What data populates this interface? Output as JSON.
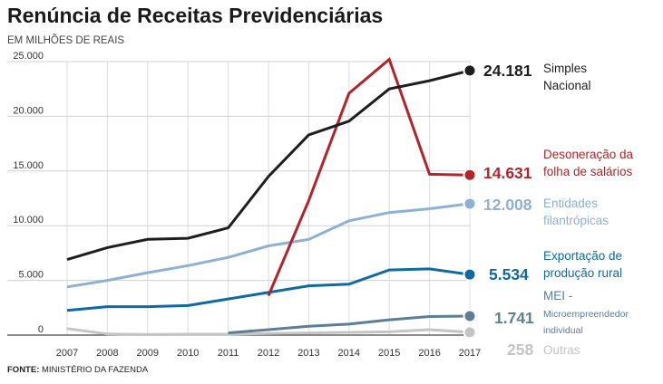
{
  "header": {
    "title": "Renúncia de Receitas Previdenciárias",
    "subtitle": "EM MILHÕES DE REAIS"
  },
  "footer": {
    "source_label": "FONTE:",
    "source_text": "MINISTÉRIO DA FAZENDA"
  },
  "chart_data": {
    "type": "line",
    "title": "Renúncia de Receitas Previdenciárias",
    "subtitle": "EM MILHÕES DE REAIS",
    "xlabel": "",
    "ylabel": "",
    "x": [
      2007,
      2008,
      2009,
      2010,
      2011,
      2012,
      2013,
      2014,
      2015,
      2016,
      2017
    ],
    "ylim": [
      0,
      25000
    ],
    "yticks": [
      0,
      5000,
      10000,
      15000,
      20000,
      25000
    ],
    "ytick_labels": [
      "0",
      "5.000",
      "10.000",
      "15.000",
      "20.000",
      "25.000"
    ],
    "grid": "horizontal and vertical",
    "legend": "direct labels at right",
    "series": [
      {
        "key": "outras",
        "name": "Outras",
        "label_lines": [
          "Outras"
        ],
        "value_label": "258",
        "color": "#c4c4c4",
        "values": [
          600,
          100,
          50,
          80,
          80,
          150,
          200,
          250,
          300,
          500,
          258
        ]
      },
      {
        "key": "mei",
        "name": "MEI - Microempreendedor individual",
        "label_lines": [
          "MEI -",
          "Microempreendedor",
          "individual"
        ],
        "value_label": "1.741",
        "color": "#5d7d99",
        "values": [
          null,
          null,
          null,
          null,
          200,
          500,
          800,
          1000,
          1400,
          1700,
          1741
        ]
      },
      {
        "key": "exportacao",
        "name": "Exportação de produção rural",
        "label_lines": [
          "Exportação de",
          "produção rural"
        ],
        "value_label": "5.534",
        "color": "#0e6aa0",
        "values": [
          2250,
          2600,
          2600,
          2700,
          3300,
          3900,
          4500,
          4650,
          5950,
          6050,
          5534
        ]
      },
      {
        "key": "filantropicas",
        "name": "Entidades filantrópicas",
        "label_lines": [
          "Entidades",
          "filantrópicas"
        ],
        "value_label": "12.008",
        "color": "#8db1d3",
        "values": [
          4400,
          5000,
          5700,
          6350,
          7100,
          8150,
          8750,
          10450,
          11200,
          11550,
          12008
        ]
      },
      {
        "key": "desoneracao",
        "name": "Desoneração da folha de salários",
        "label_lines": [
          "Desoneração da",
          "folha de salários"
        ],
        "value_label": "14.631",
        "color": "#b3242a",
        "values": [
          null,
          null,
          null,
          null,
          null,
          3600,
          12300,
          22100,
          25200,
          14700,
          14631
        ]
      },
      {
        "key": "simples",
        "name": "Simples Nacional",
        "label_lines": [
          "Simples",
          "Nacional"
        ],
        "value_label": "24.181",
        "color": "#1e1e1e",
        "values": [
          6900,
          8000,
          8750,
          8850,
          9800,
          14500,
          18300,
          19550,
          22500,
          23250,
          24181
        ]
      }
    ]
  }
}
